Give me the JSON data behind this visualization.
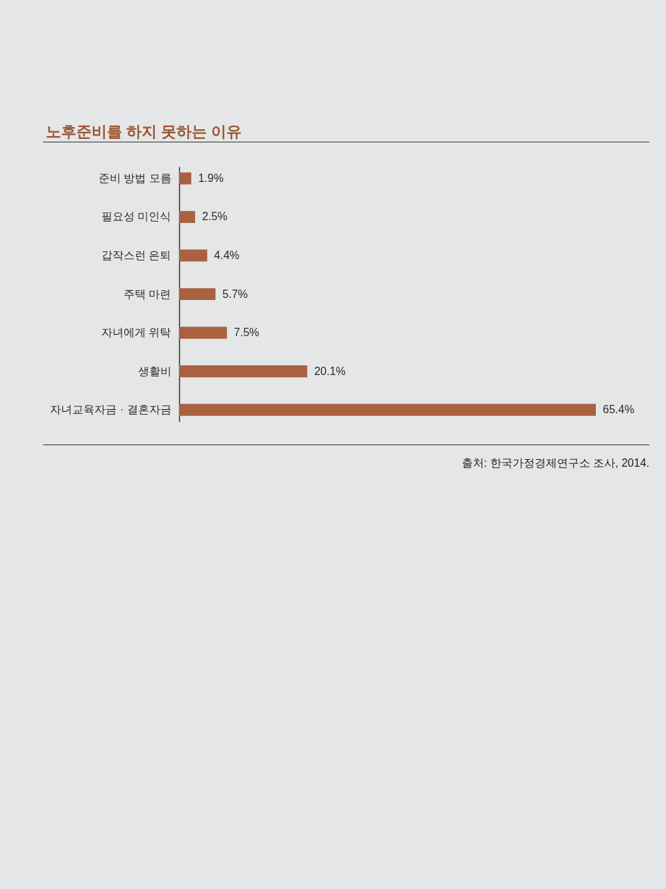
{
  "chart_data": {
    "type": "bar",
    "orientation": "horizontal",
    "title": "노후준비를 하지 못하는 이유",
    "categories": [
      "준비 방법 모름",
      "필요성 미인식",
      "갑작스런 은퇴",
      "주택 마련",
      "자녀에게 위탁",
      "생활비",
      "자녀교육자금 · 결혼자금"
    ],
    "values": [
      1.9,
      2.5,
      4.4,
      5.7,
      7.5,
      20.1,
      65.4
    ],
    "value_labels": [
      "1.9%",
      "2.5%",
      "4.4%",
      "5.7%",
      "7.5%",
      "20.1%",
      "65.4%"
    ],
    "color": "#a8623f",
    "tick_labels": "y",
    "annotations": [
      "출처: 한국가정경제연구소 조사, 2014."
    ]
  }
}
